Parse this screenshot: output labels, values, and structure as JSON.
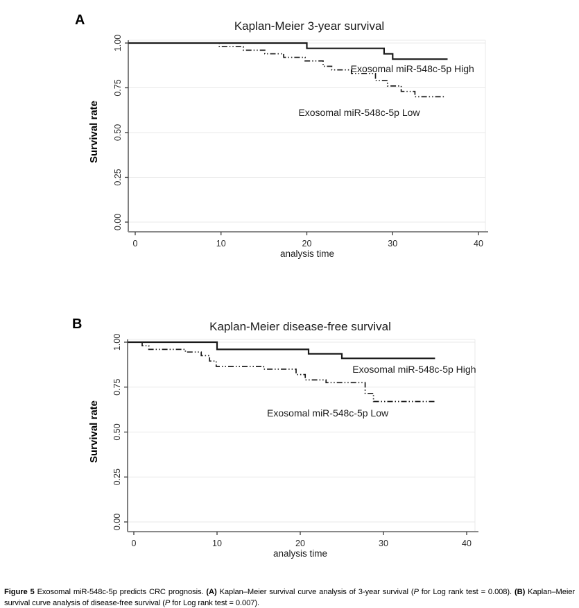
{
  "figure": {
    "panel_a_letter": "A",
    "panel_b_letter": "B"
  },
  "chart_data": [
    {
      "type": "line",
      "subtype": "kaplan-meier-step",
      "panel": "A",
      "title": "Kaplan-Meier 3-year survival",
      "xlabel": "analysis time",
      "ylabel": "Survival rate",
      "xlim": [
        0,
        40
      ],
      "ylim": [
        0.0,
        1.0
      ],
      "xticks": [
        0,
        10,
        20,
        30,
        40
      ],
      "yticks": [
        "0.00",
        "0.25",
        "0.50",
        "0.75",
        "1.00"
      ],
      "grid": "horizontal-light",
      "legend_position": "inline-annotations",
      "series": [
        {
          "name": "Exosomal miR-548c-5p Low",
          "style": "dash-dot-dot",
          "steps": [
            [
              0,
              1.0
            ],
            [
              9.8,
              0.98
            ],
            [
              12.6,
              0.96
            ],
            [
              15.1,
              0.94
            ],
            [
              17.3,
              0.92
            ],
            [
              19.8,
              0.9
            ],
            [
              21.9,
              0.87
            ],
            [
              22.9,
              0.85
            ],
            [
              25.2,
              0.83
            ],
            [
              28.0,
              0.79
            ],
            [
              29.4,
              0.76
            ],
            [
              31.0,
              0.73
            ],
            [
              32.6,
              0.7
            ],
            [
              36.2,
              0.7
            ]
          ]
        },
        {
          "name": "Exosomal miR-548c-5p High",
          "style": "solid",
          "steps": [
            [
              0,
              1.0
            ],
            [
              20,
              0.97
            ],
            [
              29,
              0.94
            ],
            [
              30,
              0.91
            ],
            [
              36.4,
              0.91
            ]
          ]
        }
      ],
      "annotations": [
        {
          "text": "Exosomal miR-548c-5p High",
          "x": 32.3,
          "y": 0.837
        },
        {
          "text": "Exosomal miR-548c-5p Low",
          "x": 26.1,
          "y": 0.593
        }
      ]
    },
    {
      "type": "line",
      "subtype": "kaplan-meier-step",
      "panel": "B",
      "title": "Kaplan-Meier disease-free survival",
      "xlabel": "analysis time",
      "ylabel": "Survival rate",
      "xlim": [
        0,
        40
      ],
      "ylim": [
        0.0,
        1.0
      ],
      "xticks": [
        0,
        10,
        20,
        30,
        40
      ],
      "yticks": [
        "0.00",
        "0.25",
        "0.50",
        "0.75",
        "1.00"
      ],
      "grid": "horizontal-light",
      "legend_position": "inline-annotations",
      "series": [
        {
          "name": "Exosomal miR-548c-5p Low",
          "style": "dash-dot-dot",
          "steps": [
            [
              0,
              1.0
            ],
            [
              1.0,
              0.98
            ],
            [
              1.8,
              0.96
            ],
            [
              6.2,
              0.945
            ],
            [
              8.1,
              0.925
            ],
            [
              9.1,
              0.895
            ],
            [
              9.9,
              0.865
            ],
            [
              15.6,
              0.85
            ],
            [
              19.5,
              0.82
            ],
            [
              20.6,
              0.79
            ],
            [
              23.1,
              0.775
            ],
            [
              27.8,
              0.715
            ],
            [
              28.8,
              0.67
            ],
            [
              36.2,
              0.67
            ]
          ]
        },
        {
          "name": "Exosomal miR-548c-5p High",
          "style": "solid",
          "steps": [
            [
              0,
              1.0
            ],
            [
              10,
              0.96
            ],
            [
              21,
              0.935
            ],
            [
              25,
              0.91
            ],
            [
              36.2,
              0.91
            ]
          ]
        }
      ],
      "annotations": [
        {
          "text": "Exosomal miR-548c-5p High",
          "x": 33.7,
          "y": 0.83
        },
        {
          "text": "Exosomal miR-548c-5p Low",
          "x": 23.3,
          "y": 0.587
        }
      ]
    }
  ],
  "caption": {
    "figure_label": "Figure 5",
    "s1": " Exosomal miR-548c-5p predicts CRC prognosis. ",
    "a_label": "(A)",
    "s2": " Kaplan–Meier survival curve analysis of 3-year survival (",
    "p1": "P",
    "s3": " for Log rank test = 0.008). ",
    "b_label": "(B)",
    "s4": " Kaplan–Meier survival curve analysis of disease-free survival (",
    "p2": "P",
    "s5": " for Log rank test = 0.007)."
  },
  "colors": {
    "curve": "#1a1a1a",
    "grid": "#e8e8e8",
    "y_axis": "#3a3a3a",
    "x_axis": "#8a8a8a",
    "text": "#000000"
  }
}
